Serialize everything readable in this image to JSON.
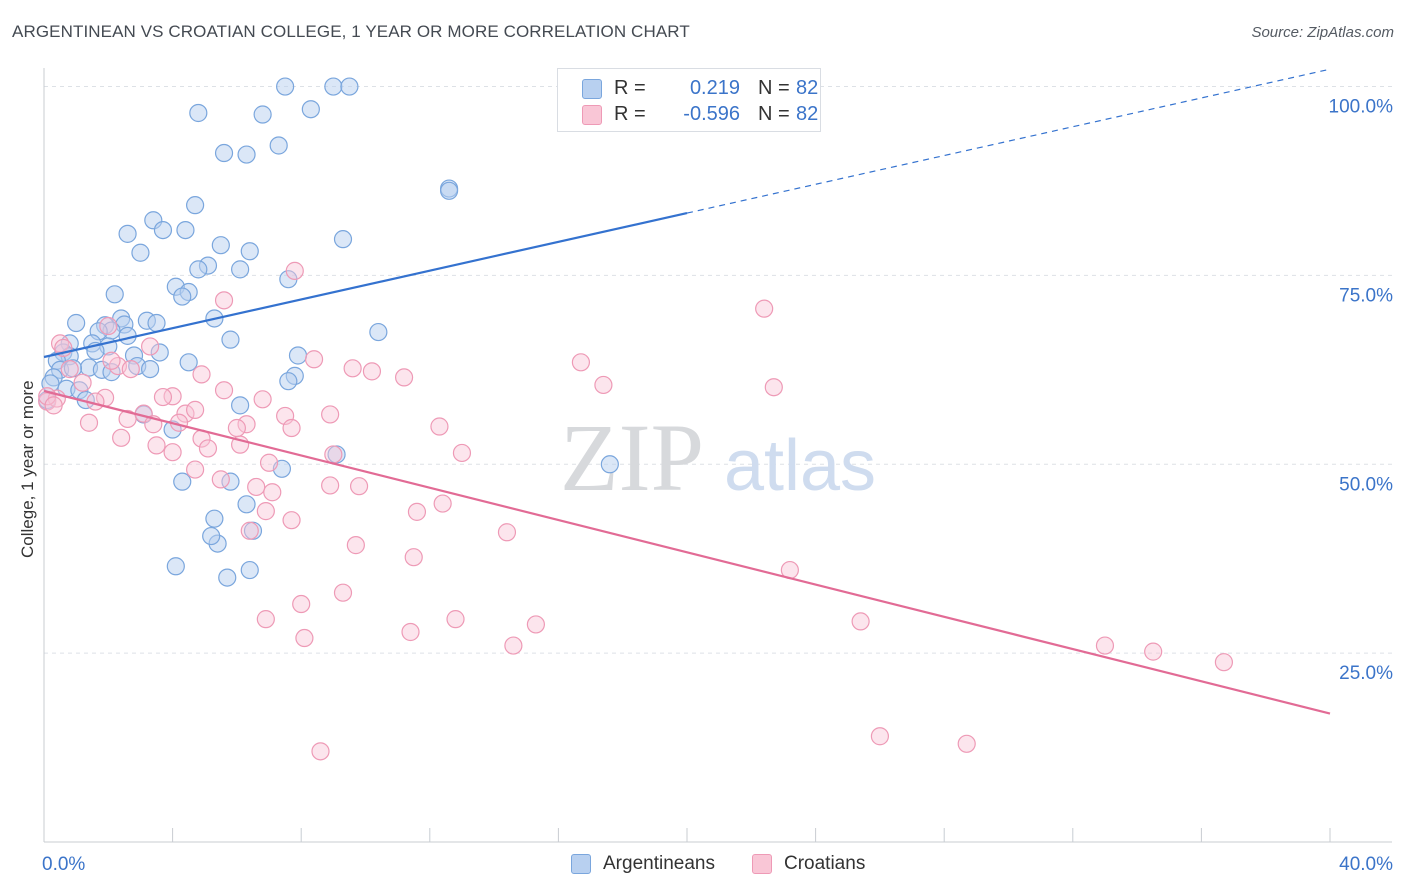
{
  "header": {
    "title": "ARGENTINEAN VS CROATIAN COLLEGE, 1 YEAR OR MORE CORRELATION CHART",
    "source": "Source: ZipAtlas.com"
  },
  "watermark": {
    "zip": "ZIP",
    "atlas": "atlas"
  },
  "legend": {
    "argentineans": {
      "r_label": "R =",
      "r_value": "0.219",
      "n_label": "N =",
      "n_value": "82"
    },
    "croatians": {
      "r_label": "R =",
      "r_value": "-0.596",
      "n_label": "N =",
      "n_value": "82"
    }
  },
  "bottom_legend": {
    "argentineans": "Argentineans",
    "croatians": "Croatians"
  },
  "colors": {
    "argentineans_fill": "#b8d0f0",
    "argentineans_stroke": "#7aa6dd",
    "argentineans_line": "#3472cf",
    "croatians_fill": "#f9c6d6",
    "croatians_stroke": "#ee9ab6",
    "croatians_line": "#e26b95",
    "tick_text": "#3b74c9",
    "grid": "#dde1e6"
  },
  "chart_data": {
    "type": "scatter",
    "title": "ARGENTINEAN VS CROATIAN COLLEGE, 1 YEAR OR MORE CORRELATION CHART",
    "xlabel": "",
    "ylabel": "College, 1 year or more",
    "xlim": [
      0,
      40
    ],
    "ylim": [
      0,
      101
    ],
    "x_tick_labels": [
      "0.0%",
      "40.0%"
    ],
    "y_ticks": [
      {
        "value": 25,
        "label": "25.0%"
      },
      {
        "value": 50,
        "label": "50.0%"
      },
      {
        "value": 75,
        "label": "75.0%"
      },
      {
        "value": 100,
        "label": "100.0%"
      }
    ],
    "series": [
      {
        "name": "Argentineans",
        "trend": {
          "x0": 0,
          "y0": 64.2,
          "x1": 40,
          "y1": 102.3,
          "solid_until_x": 20
        },
        "points": [
          [
            7.5,
            100
          ],
          [
            9.0,
            100
          ],
          [
            9.5,
            100
          ],
          [
            4.8,
            96.5
          ],
          [
            6.8,
            96.3
          ],
          [
            8.3,
            97
          ],
          [
            5.6,
            91.2
          ],
          [
            6.3,
            91
          ],
          [
            7.3,
            92.2
          ],
          [
            12.6,
            86.5
          ],
          [
            12.6,
            86.2
          ],
          [
            4.7,
            84.3
          ],
          [
            3.4,
            82.3
          ],
          [
            3.7,
            81
          ],
          [
            4.4,
            81
          ],
          [
            2.6,
            80.5
          ],
          [
            9.3,
            79.8
          ],
          [
            5.5,
            79
          ],
          [
            6.4,
            78.2
          ],
          [
            3.0,
            78
          ],
          [
            5.1,
            76.3
          ],
          [
            4.8,
            75.8
          ],
          [
            6.1,
            75.8
          ],
          [
            7.6,
            74.5
          ],
          [
            4.1,
            73.5
          ],
          [
            4.5,
            72.8
          ],
          [
            4.3,
            72.2
          ],
          [
            2.2,
            72.5
          ],
          [
            3.2,
            69
          ],
          [
            3.5,
            68.7
          ],
          [
            2.4,
            69.3
          ],
          [
            5.3,
            69.3
          ],
          [
            2.5,
            68.5
          ],
          [
            1.0,
            68.7
          ],
          [
            1.9,
            68.4
          ],
          [
            2.1,
            67.7
          ],
          [
            1.7,
            67.6
          ],
          [
            2.6,
            67
          ],
          [
            10.4,
            67.5
          ],
          [
            5.8,
            66.5
          ],
          [
            0.8,
            66
          ],
          [
            1.5,
            66
          ],
          [
            2.0,
            65.6
          ],
          [
            1.6,
            65
          ],
          [
            0.6,
            64.8
          ],
          [
            3.6,
            64.8
          ],
          [
            0.8,
            64.3
          ],
          [
            0.4,
            63.7
          ],
          [
            2.8,
            64.4
          ],
          [
            4.5,
            63.5
          ],
          [
            7.9,
            64.4
          ],
          [
            0.5,
            62.5
          ],
          [
            1.4,
            62.8
          ],
          [
            0.9,
            62.7
          ],
          [
            1.8,
            62.5
          ],
          [
            2.1,
            62.2
          ],
          [
            2.9,
            63
          ],
          [
            3.3,
            62.6
          ],
          [
            7.8,
            61.7
          ],
          [
            7.6,
            61
          ],
          [
            0.3,
            61.5
          ],
          [
            0.2,
            60.7
          ],
          [
            0.7,
            60
          ],
          [
            1.1,
            59.8
          ],
          [
            1.3,
            58.5
          ],
          [
            0.1,
            58.5
          ],
          [
            6.1,
            57.8
          ],
          [
            3.1,
            56.6
          ],
          [
            4.0,
            54.6
          ],
          [
            9.1,
            51.3
          ],
          [
            7.4,
            49.4
          ],
          [
            17.6,
            50
          ],
          [
            4.3,
            47.7
          ],
          [
            5.8,
            47.7
          ],
          [
            6.3,
            44.7
          ],
          [
            5.3,
            42.8
          ],
          [
            5.4,
            39.5
          ],
          [
            5.2,
            40.5
          ],
          [
            6.5,
            41.2
          ],
          [
            6.4,
            36
          ],
          [
            5.7,
            35
          ],
          [
            4.1,
            36.5
          ]
        ]
      },
      {
        "name": "Croatians",
        "trend": {
          "x0": 0,
          "y0": 59.7,
          "x1": 40,
          "y1": 17.0
        },
        "points": [
          [
            0.5,
            66
          ],
          [
            0.6,
            65.4
          ],
          [
            3.3,
            65.6
          ],
          [
            2.0,
            68.3
          ],
          [
            5.6,
            71.7
          ],
          [
            7.8,
            75.6
          ],
          [
            22.4,
            70.6
          ],
          [
            8.4,
            63.9
          ],
          [
            16.7,
            63.5
          ],
          [
            9.6,
            62.7
          ],
          [
            10.2,
            62.3
          ],
          [
            11.2,
            61.5
          ],
          [
            17.4,
            60.5
          ],
          [
            22.7,
            60.2
          ],
          [
            4.9,
            61.9
          ],
          [
            2.3,
            63
          ],
          [
            2.1,
            63.7
          ],
          [
            0.8,
            62.6
          ],
          [
            5.6,
            59.8
          ],
          [
            4.0,
            59
          ],
          [
            1.9,
            58.8
          ],
          [
            1.6,
            58.3
          ],
          [
            0.1,
            58.3
          ],
          [
            0.4,
            58.7
          ],
          [
            3.1,
            56.7
          ],
          [
            4.4,
            56.7
          ],
          [
            4.7,
            57.2
          ],
          [
            8.9,
            56.6
          ],
          [
            7.5,
            56.4
          ],
          [
            2.6,
            56
          ],
          [
            3.4,
            55.3
          ],
          [
            4.2,
            55.5
          ],
          [
            1.4,
            55.5
          ],
          [
            6.3,
            55.3
          ],
          [
            6.0,
            54.8
          ],
          [
            7.7,
            54.8
          ],
          [
            12.3,
            55
          ],
          [
            2.4,
            53.5
          ],
          [
            4.9,
            53.4
          ],
          [
            3.5,
            52.5
          ],
          [
            5.1,
            52.1
          ],
          [
            6.1,
            52.6
          ],
          [
            9.0,
            51.3
          ],
          [
            4.0,
            51.6
          ],
          [
            13.0,
            51.5
          ],
          [
            7.0,
            50.2
          ],
          [
            4.7,
            49.3
          ],
          [
            5.5,
            48
          ],
          [
            7.1,
            46.3
          ],
          [
            8.9,
            47.2
          ],
          [
            9.8,
            47.1
          ],
          [
            6.6,
            47
          ],
          [
            12.4,
            44.8
          ],
          [
            11.6,
            43.7
          ],
          [
            6.9,
            43.8
          ],
          [
            7.7,
            42.6
          ],
          [
            6.4,
            41.2
          ],
          [
            14.4,
            41
          ],
          [
            9.7,
            39.3
          ],
          [
            11.5,
            37.7
          ],
          [
            23.2,
            36
          ],
          [
            9.3,
            33
          ],
          [
            8.0,
            31.5
          ],
          [
            12.8,
            29.5
          ],
          [
            6.9,
            29.5
          ],
          [
            25.4,
            29.2
          ],
          [
            15.3,
            28.8
          ],
          [
            11.4,
            27.8
          ],
          [
            8.1,
            27
          ],
          [
            14.6,
            26
          ],
          [
            33.0,
            26
          ],
          [
            34.5,
            25.2
          ],
          [
            36.7,
            23.8
          ],
          [
            26.0,
            14
          ],
          [
            28.7,
            13
          ],
          [
            8.6,
            12
          ],
          [
            0.1,
            59
          ],
          [
            0.3,
            57.8
          ],
          [
            1.2,
            60.8
          ],
          [
            2.7,
            62.6
          ],
          [
            3.7,
            58.9
          ],
          [
            6.8,
            58.6
          ]
        ]
      }
    ]
  }
}
